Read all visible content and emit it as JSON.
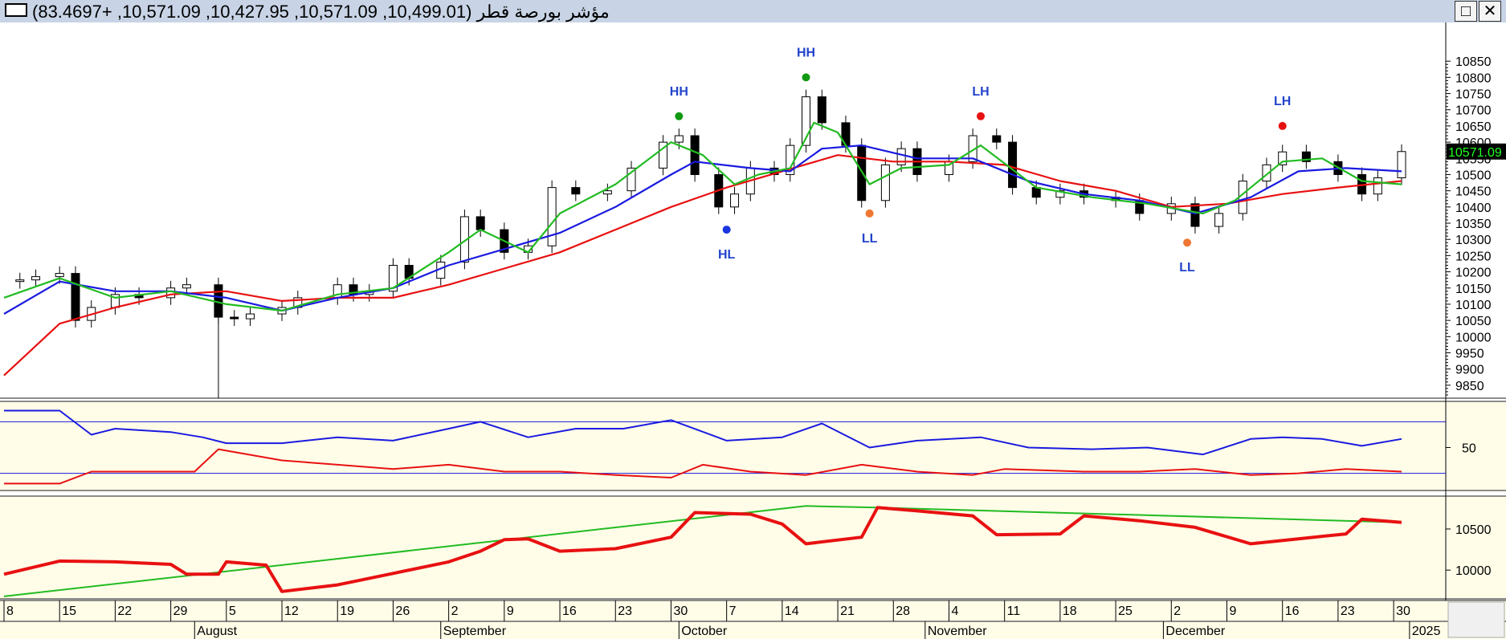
{
  "window": {
    "title": "مؤشر بورصة قطر (10,499.01, 10,571.09, 10,427.95, 10,571.09, +83.4697)",
    "maximize_glyph": "□",
    "close_glyph": "✕"
  },
  "price_panel": {
    "current_price_label": "10571.09",
    "y_ticks": [
      9850,
      9900,
      9950,
      10000,
      10050,
      10100,
      10150,
      10200,
      10250,
      10300,
      10350,
      10400,
      10450,
      10500,
      10550,
      10600,
      10650,
      10700,
      10750,
      10800,
      10850
    ],
    "ylim": [
      9810,
      10900
    ],
    "annotations": [
      {
        "label": "HH",
        "date": "2024-10-01",
        "value": 10680,
        "dot_color": "#119911",
        "label_pos": "above"
      },
      {
        "label": "HL",
        "date": "2024-10-07",
        "value": 10330,
        "dot_color": "#1a35e0",
        "label_pos": "below"
      },
      {
        "label": "HH",
        "date": "2024-10-17",
        "value": 10800,
        "dot_color": "#119911",
        "label_pos": "above"
      },
      {
        "label": "LL",
        "date": "2024-10-25",
        "value": 10380,
        "dot_color": "#ee7733",
        "label_pos": "below"
      },
      {
        "label": "LH",
        "date": "2024-11-08",
        "value": 10680,
        "dot_color": "#e81111",
        "label_pos": "above"
      },
      {
        "label": "LL",
        "date": "2024-12-04",
        "value": 10290,
        "dot_color": "#ee7733",
        "label_pos": "below"
      },
      {
        "label": "LH",
        "date": "2024-12-16",
        "value": 10650,
        "dot_color": "#e81111",
        "label_pos": "above"
      }
    ]
  },
  "rsi_panel": {
    "tick_label": "50",
    "ylim": [
      0,
      100
    ],
    "level_lines": [
      80,
      20
    ]
  },
  "bottom_panel": {
    "y_ticks": [
      10000,
      10500
    ],
    "ylim": [
      9650,
      10900
    ]
  },
  "x_axis": {
    "day_ticks": [
      {
        "label": "8",
        "date": "2024-07-08"
      },
      {
        "label": "15",
        "date": "2024-07-15"
      },
      {
        "label": "22",
        "date": "2024-07-22"
      },
      {
        "label": "29",
        "date": "2024-07-29"
      },
      {
        "label": "5",
        "date": "2024-08-05"
      },
      {
        "label": "12",
        "date": "2024-08-12"
      },
      {
        "label": "19",
        "date": "2024-08-19"
      },
      {
        "label": "26",
        "date": "2024-08-26"
      },
      {
        "label": "2",
        "date": "2024-09-02"
      },
      {
        "label": "9",
        "date": "2024-09-09"
      },
      {
        "label": "16",
        "date": "2024-09-16"
      },
      {
        "label": "23",
        "date": "2024-09-23"
      },
      {
        "label": "30",
        "date": "2024-09-30"
      },
      {
        "label": "7",
        "date": "2024-10-07"
      },
      {
        "label": "14",
        "date": "2024-10-14"
      },
      {
        "label": "21",
        "date": "2024-10-21"
      },
      {
        "label": "28",
        "date": "2024-10-28"
      },
      {
        "label": "4",
        "date": "2024-11-04"
      },
      {
        "label": "11",
        "date": "2024-11-11"
      },
      {
        "label": "18",
        "date": "2024-11-18"
      },
      {
        "label": "25",
        "date": "2024-11-25"
      },
      {
        "label": "2",
        "date": "2024-12-02"
      },
      {
        "label": "9",
        "date": "2024-12-09"
      },
      {
        "label": "16",
        "date": "2024-12-16"
      },
      {
        "label": "23",
        "date": "2024-12-23"
      },
      {
        "label": "30",
        "date": "2024-12-30"
      }
    ],
    "month_ticks": [
      {
        "label": "August",
        "date": "2024-08-01"
      },
      {
        "label": "September",
        "date": "2024-09-01"
      },
      {
        "label": "October",
        "date": "2024-10-01"
      },
      {
        "label": "November",
        "date": "2024-11-01"
      },
      {
        "label": "December",
        "date": "2024-12-01"
      },
      {
        "label": "2025",
        "date": "2025-01-01"
      }
    ],
    "start_date": "2024-07-08",
    "end_date": "2024-12-31"
  },
  "colors": {
    "panel_bg": "#fffde8",
    "green_line": "#22bb22",
    "blue_line": "#1a1ae0",
    "red_line": "#e81111",
    "price_tag_bg": "#000000",
    "price_tag_text": "#22ff22",
    "annotation_text": "#2244cc"
  },
  "chart_data": {
    "type": "candlestick",
    "close_series": [
      [
        "2024-07-08",
        10170
      ],
      [
        "2024-07-10",
        10175
      ],
      [
        "2024-07-12",
        10185
      ],
      [
        "2024-07-15",
        10195
      ],
      [
        "2024-07-17",
        10050
      ],
      [
        "2024-07-19",
        10090
      ],
      [
        "2024-07-22",
        10130
      ],
      [
        "2024-07-25",
        10120
      ],
      [
        "2024-07-29",
        10150
      ],
      [
        "2024-07-31",
        10160
      ],
      [
        "2024-08-04",
        10060
      ],
      [
        "2024-08-06",
        10055
      ],
      [
        "2024-08-08",
        10070
      ],
      [
        "2024-08-12",
        10090
      ],
      [
        "2024-08-14",
        10120
      ],
      [
        "2024-08-19",
        10160
      ],
      [
        "2024-08-21",
        10130
      ],
      [
        "2024-08-23",
        10140
      ],
      [
        "2024-08-26",
        10220
      ],
      [
        "2024-08-28",
        10180
      ],
      [
        "2024-09-01",
        10230
      ],
      [
        "2024-09-04",
        10370
      ],
      [
        "2024-09-06",
        10330
      ],
      [
        "2024-09-09",
        10260
      ],
      [
        "2024-09-12",
        10280
      ],
      [
        "2024-09-15",
        10460
      ],
      [
        "2024-09-18",
        10440
      ],
      [
        "2024-09-22",
        10450
      ],
      [
        "2024-09-25",
        10520
      ],
      [
        "2024-09-29",
        10600
      ],
      [
        "2024-10-01",
        10620
      ],
      [
        "2024-10-03",
        10500
      ],
      [
        "2024-10-06",
        10400
      ],
      [
        "2024-10-08",
        10440
      ],
      [
        "2024-10-10",
        10520
      ],
      [
        "2024-10-13",
        10500
      ],
      [
        "2024-10-15",
        10590
      ],
      [
        "2024-10-17",
        10740
      ],
      [
        "2024-10-19",
        10660
      ],
      [
        "2024-10-22",
        10590
      ],
      [
        "2024-10-24",
        10420
      ],
      [
        "2024-10-27",
        10530
      ],
      [
        "2024-10-29",
        10580
      ],
      [
        "2024-10-31",
        10500
      ],
      [
        "2024-11-04",
        10540
      ],
      [
        "2024-11-07",
        10620
      ],
      [
        "2024-11-10",
        10600
      ],
      [
        "2024-11-12",
        10460
      ],
      [
        "2024-11-15",
        10430
      ],
      [
        "2024-11-18",
        10450
      ],
      [
        "2024-11-21",
        10430
      ],
      [
        "2024-11-25",
        10420
      ],
      [
        "2024-11-28",
        10380
      ],
      [
        "2024-12-02",
        10410
      ],
      [
        "2024-12-05",
        10340
      ],
      [
        "2024-12-08",
        10380
      ],
      [
        "2024-12-11",
        10480
      ],
      [
        "2024-12-14",
        10530
      ],
      [
        "2024-12-16",
        10570
      ],
      [
        "2024-12-19",
        10540
      ],
      [
        "2024-12-23",
        10500
      ],
      [
        "2024-12-26",
        10440
      ],
      [
        "2024-12-28",
        10490
      ],
      [
        "2024-12-31",
        10571.09
      ]
    ],
    "ma_green": [
      [
        "2024-07-08",
        10120
      ],
      [
        "2024-07-15",
        10180
      ],
      [
        "2024-07-22",
        10120
      ],
      [
        "2024-07-29",
        10140
      ],
      [
        "2024-08-05",
        10100
      ],
      [
        "2024-08-12",
        10080
      ],
      [
        "2024-08-19",
        10130
      ],
      [
        "2024-08-26",
        10150
      ],
      [
        "2024-09-02",
        10260
      ],
      [
        "2024-09-06",
        10330
      ],
      [
        "2024-09-12",
        10260
      ],
      [
        "2024-09-16",
        10380
      ],
      [
        "2024-09-23",
        10470
      ],
      [
        "2024-09-30",
        10600
      ],
      [
        "2024-10-04",
        10560
      ],
      [
        "2024-10-08",
        10470
      ],
      [
        "2024-10-11",
        10500
      ],
      [
        "2024-10-15",
        10520
      ],
      [
        "2024-10-18",
        10660
      ],
      [
        "2024-10-21",
        10630
      ],
      [
        "2024-10-25",
        10470
      ],
      [
        "2024-10-29",
        10520
      ],
      [
        "2024-11-04",
        10530
      ],
      [
        "2024-11-08",
        10590
      ],
      [
        "2024-11-15",
        10460
      ],
      [
        "2024-11-22",
        10430
      ],
      [
        "2024-11-29",
        10410
      ],
      [
        "2024-12-06",
        10380
      ],
      [
        "2024-12-10",
        10420
      ],
      [
        "2024-12-16",
        10540
      ],
      [
        "2024-12-21",
        10550
      ],
      [
        "2024-12-26",
        10480
      ],
      [
        "2024-12-31",
        10470
      ]
    ],
    "ma_blue": [
      [
        "2024-07-08",
        10070
      ],
      [
        "2024-07-15",
        10170
      ],
      [
        "2024-07-22",
        10140
      ],
      [
        "2024-07-29",
        10140
      ],
      [
        "2024-08-05",
        10120
      ],
      [
        "2024-08-12",
        10080
      ],
      [
        "2024-08-19",
        10120
      ],
      [
        "2024-08-26",
        10150
      ],
      [
        "2024-09-02",
        10220
      ],
      [
        "2024-09-09",
        10270
      ],
      [
        "2024-09-16",
        10320
      ],
      [
        "2024-09-23",
        10400
      ],
      [
        "2024-09-30",
        10500
      ],
      [
        "2024-10-03",
        10540
      ],
      [
        "2024-10-10",
        10520
      ],
      [
        "2024-10-15",
        10510
      ],
      [
        "2024-10-19",
        10580
      ],
      [
        "2024-10-24",
        10590
      ],
      [
        "2024-10-31",
        10550
      ],
      [
        "2024-11-07",
        10550
      ],
      [
        "2024-11-14",
        10480
      ],
      [
        "2024-11-21",
        10440
      ],
      [
        "2024-11-28",
        10420
      ],
      [
        "2024-12-05",
        10380
      ],
      [
        "2024-12-12",
        10430
      ],
      [
        "2024-12-18",
        10510
      ],
      [
        "2024-12-24",
        10520
      ],
      [
        "2024-12-31",
        10510
      ]
    ],
    "ma_red": [
      [
        "2024-07-08",
        9880
      ],
      [
        "2024-07-15",
        10040
      ],
      [
        "2024-07-22",
        10090
      ],
      [
        "2024-07-29",
        10130
      ],
      [
        "2024-08-05",
        10140
      ],
      [
        "2024-08-12",
        10110
      ],
      [
        "2024-08-19",
        10120
      ],
      [
        "2024-08-26",
        10120
      ],
      [
        "2024-09-02",
        10160
      ],
      [
        "2024-09-09",
        10210
      ],
      [
        "2024-09-16",
        10260
      ],
      [
        "2024-09-23",
        10330
      ],
      [
        "2024-09-30",
        10400
      ],
      [
        "2024-10-07",
        10460
      ],
      [
        "2024-10-14",
        10510
      ],
      [
        "2024-10-21",
        10560
      ],
      [
        "2024-10-28",
        10540
      ],
      [
        "2024-11-04",
        10540
      ],
      [
        "2024-11-11",
        10530
      ],
      [
        "2024-11-18",
        10480
      ],
      [
        "2024-11-25",
        10450
      ],
      [
        "2024-12-02",
        10400
      ],
      [
        "2024-12-09",
        10410
      ],
      [
        "2024-12-16",
        10440
      ],
      [
        "2024-12-23",
        10460
      ],
      [
        "2024-12-31",
        10480
      ]
    ],
    "rsi_blue": [
      [
        "2024-07-08",
        93
      ],
      [
        "2024-07-15",
        93
      ],
      [
        "2024-07-19",
        65
      ],
      [
        "2024-07-22",
        72
      ],
      [
        "2024-07-29",
        68
      ],
      [
        "2024-08-02",
        62
      ],
      [
        "2024-08-05",
        55
      ],
      [
        "2024-08-12",
        55
      ],
      [
        "2024-08-19",
        62
      ],
      [
        "2024-08-26",
        58
      ],
      [
        "2024-09-02",
        72
      ],
      [
        "2024-09-06",
        80
      ],
      [
        "2024-09-12",
        62
      ],
      [
        "2024-09-18",
        72
      ],
      [
        "2024-09-24",
        72
      ],
      [
        "2024-09-30",
        82
      ],
      [
        "2024-10-07",
        58
      ],
      [
        "2024-10-14",
        62
      ],
      [
        "2024-10-19",
        78
      ],
      [
        "2024-10-25",
        50
      ],
      [
        "2024-10-31",
        58
      ],
      [
        "2024-11-08",
        62
      ],
      [
        "2024-11-14",
        50
      ],
      [
        "2024-11-22",
        48
      ],
      [
        "2024-11-29",
        50
      ],
      [
        "2024-12-06",
        42
      ],
      [
        "2024-12-12",
        60
      ],
      [
        "2024-12-16",
        62
      ],
      [
        "2024-12-21",
        60
      ],
      [
        "2024-12-26",
        52
      ],
      [
        "2024-12-31",
        60
      ]
    ],
    "rsi_red": [
      [
        "2024-07-08",
        8
      ],
      [
        "2024-07-15",
        8
      ],
      [
        "2024-07-19",
        22
      ],
      [
        "2024-07-29",
        22
      ],
      [
        "2024-08-01",
        22
      ],
      [
        "2024-08-04",
        48
      ],
      [
        "2024-08-12",
        35
      ],
      [
        "2024-08-19",
        30
      ],
      [
        "2024-08-26",
        25
      ],
      [
        "2024-09-02",
        30
      ],
      [
        "2024-09-09",
        22
      ],
      [
        "2024-09-16",
        22
      ],
      [
        "2024-09-23",
        18
      ],
      [
        "2024-09-30",
        15
      ],
      [
        "2024-10-04",
        30
      ],
      [
        "2024-10-10",
        22
      ],
      [
        "2024-10-17",
        18
      ],
      [
        "2024-10-24",
        30
      ],
      [
        "2024-10-31",
        22
      ],
      [
        "2024-11-07",
        18
      ],
      [
        "2024-11-11",
        25
      ],
      [
        "2024-11-21",
        22
      ],
      [
        "2024-11-28",
        22
      ],
      [
        "2024-12-05",
        25
      ],
      [
        "2024-12-12",
        18
      ],
      [
        "2024-12-18",
        20
      ],
      [
        "2024-12-24",
        25
      ],
      [
        "2024-12-31",
        22
      ]
    ],
    "bottom_red": [
      [
        "2024-07-08",
        9950
      ],
      [
        "2024-07-15",
        10110
      ],
      [
        "2024-07-22",
        10100
      ],
      [
        "2024-07-29",
        10070
      ],
      [
        "2024-07-31",
        9950
      ],
      [
        "2024-08-04",
        9950
      ],
      [
        "2024-08-05",
        10100
      ],
      [
        "2024-08-10",
        10060
      ],
      [
        "2024-08-12",
        9740
      ],
      [
        "2024-08-19",
        9820
      ],
      [
        "2024-08-26",
        9960
      ],
      [
        "2024-09-02",
        10100
      ],
      [
        "2024-09-06",
        10230
      ],
      [
        "2024-09-09",
        10370
      ],
      [
        "2024-09-12",
        10380
      ],
      [
        "2024-09-16",
        10230
      ],
      [
        "2024-09-23",
        10260
      ],
      [
        "2024-09-30",
        10400
      ],
      [
        "2024-10-03",
        10700
      ],
      [
        "2024-10-10",
        10680
      ],
      [
        "2024-10-14",
        10560
      ],
      [
        "2024-10-17",
        10320
      ],
      [
        "2024-10-24",
        10400
      ],
      [
        "2024-10-26",
        10760
      ],
      [
        "2024-10-31",
        10720
      ],
      [
        "2024-11-07",
        10660
      ],
      [
        "2024-11-10",
        10430
      ],
      [
        "2024-11-18",
        10440
      ],
      [
        "2024-11-21",
        10660
      ],
      [
        "2024-11-28",
        10600
      ],
      [
        "2024-12-05",
        10520
      ],
      [
        "2024-12-12",
        10320
      ],
      [
        "2024-12-18",
        10380
      ],
      [
        "2024-12-24",
        10440
      ],
      [
        "2024-12-26",
        10620
      ],
      [
        "2024-12-31",
        10580
      ]
    ],
    "bottom_green": [
      [
        "2024-07-08",
        9680
      ],
      [
        "2024-10-17",
        10780
      ],
      [
        "2024-10-26",
        10760
      ],
      [
        "2024-12-31",
        10580
      ]
    ]
  }
}
